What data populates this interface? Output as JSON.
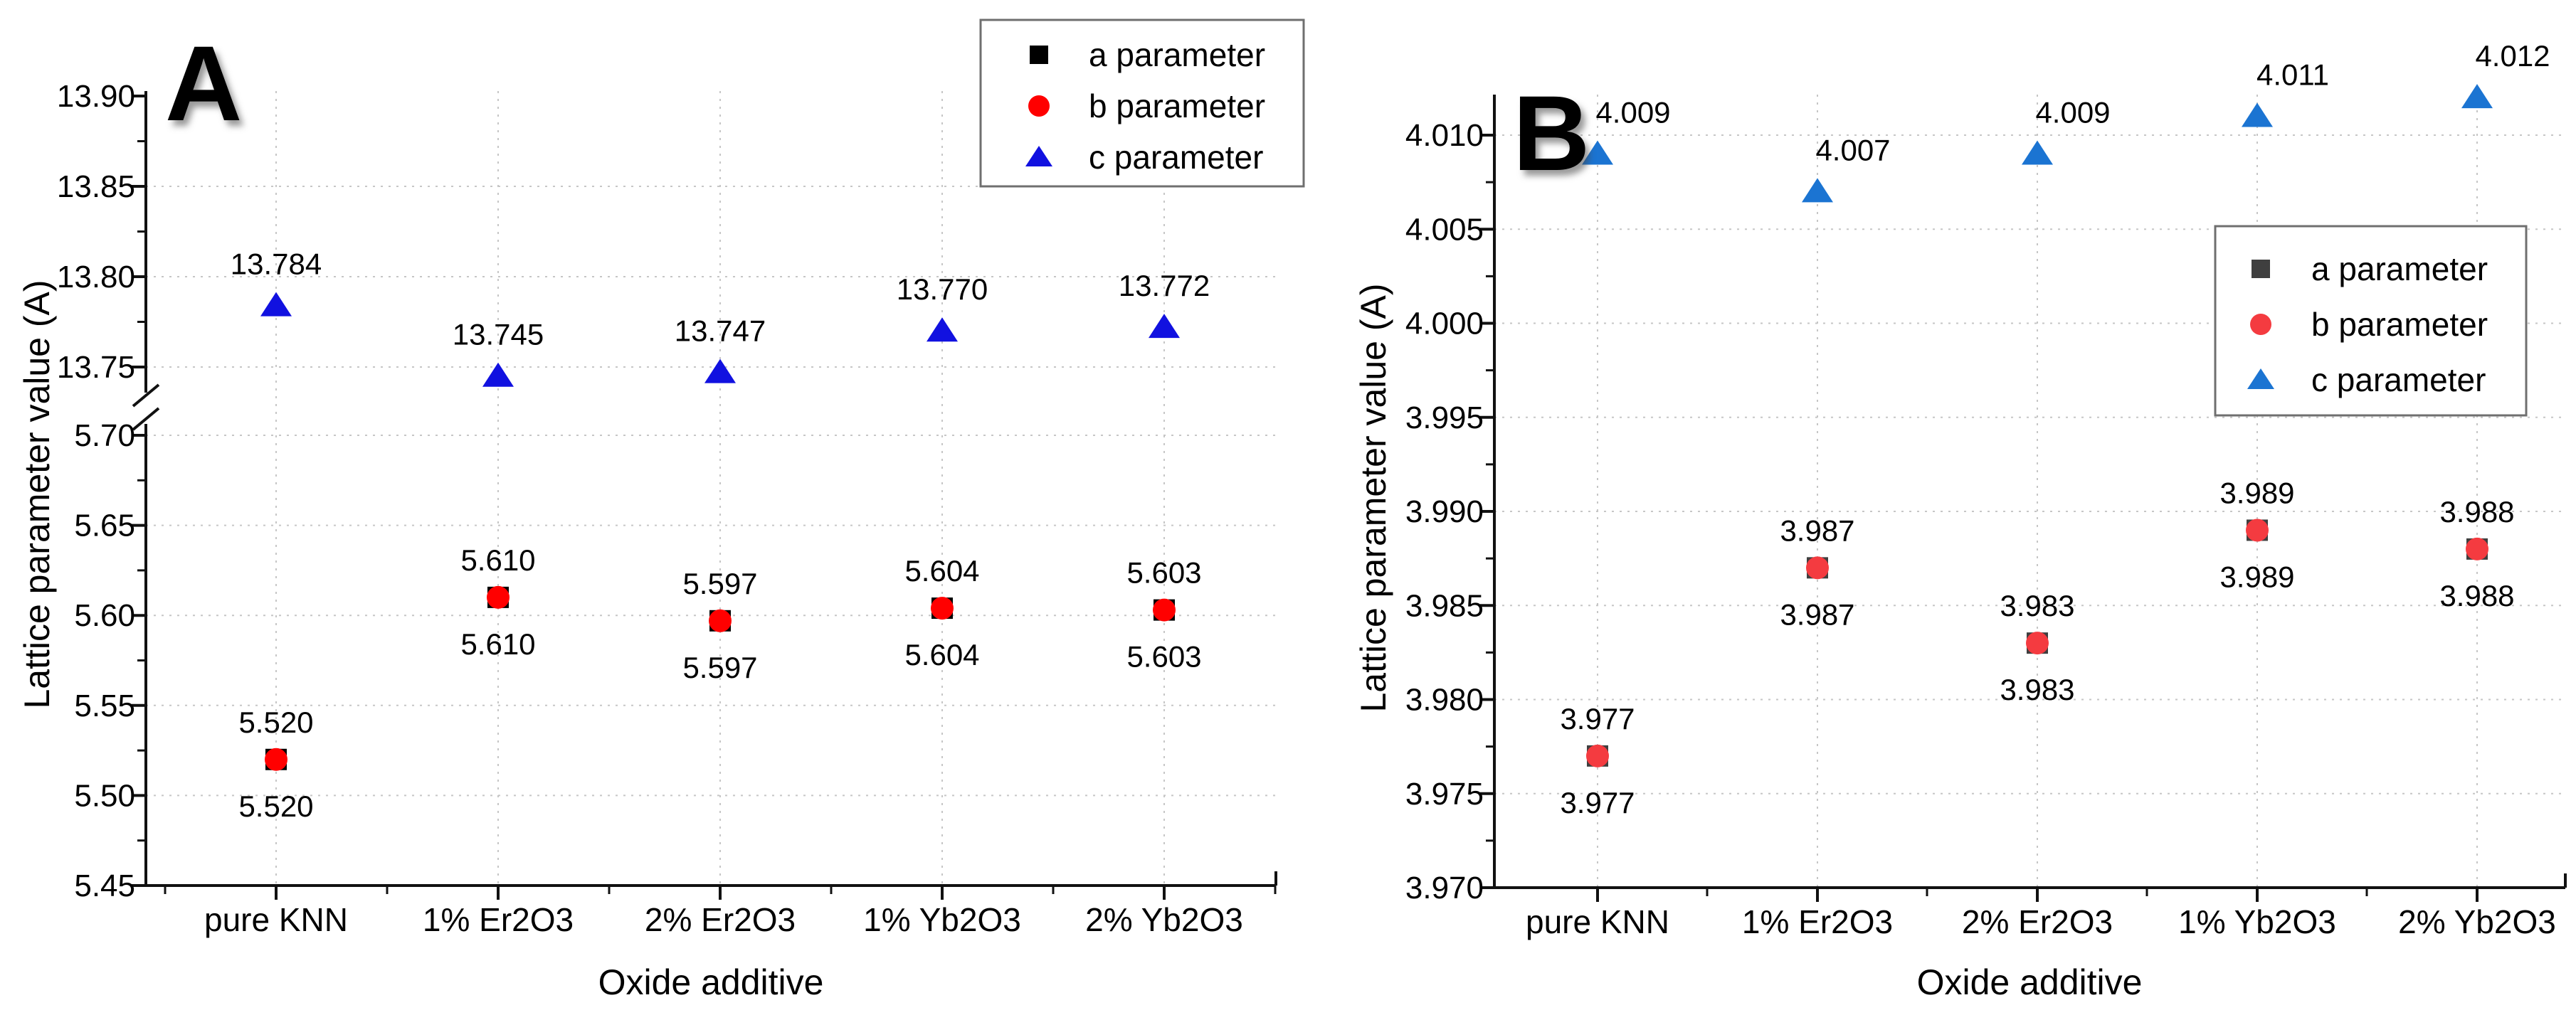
{
  "figure": {
    "background": "#ffffff"
  },
  "panels": [
    {
      "panel_label": "A",
      "axis": {
        "x_title": "Oxide additive",
        "y_title": "Lattice parameter value (A)"
      },
      "legend": {
        "position": "top-right",
        "items": [
          {
            "label": "a parameter",
            "marker": "square",
            "color": "#000000"
          },
          {
            "label": "b parameter",
            "marker": "circle",
            "color": "#ff0000"
          },
          {
            "label": "c parameter",
            "marker": "triangle",
            "color": "#1111e0"
          }
        ]
      },
      "chart_data": {
        "type": "scatter",
        "categories": [
          "pure KNN",
          "1% Er2O3",
          "2% Er2O3",
          "1% Yb2O3",
          "2% Yb2O3"
        ],
        "xlabel": "Oxide additive",
        "ylabel": "Lattice parameter value (A)",
        "grid": "dotted",
        "broken_y_axis": true,
        "y_axis_segments": [
          {
            "range": [
              13.74,
              13.905
            ],
            "ticks": [
              {
                "value": 13.9,
                "label": "13.90"
              },
              {
                "value": 13.85,
                "label": "13.85"
              },
              {
                "value": 13.8,
                "label": "13.80"
              },
              {
                "value": 13.75,
                "label": "13.75"
              }
            ],
            "minor_ticks": [
              13.875,
              13.825,
              13.775
            ],
            "gridlines": [
              13.85,
              13.8,
              13.75
            ]
          },
          {
            "range": [
              5.45,
              5.7
            ],
            "ticks": [
              {
                "value": 5.7,
                "label": "5.70"
              },
              {
                "value": 5.65,
                "label": "5.65"
              },
              {
                "value": 5.6,
                "label": "5.60"
              },
              {
                "value": 5.55,
                "label": "5.55"
              },
              {
                "value": 5.5,
                "label": "5.50"
              },
              {
                "value": 5.45,
                "label": "5.45"
              }
            ],
            "minor_ticks": [
              5.675,
              5.625,
              5.575,
              5.525,
              5.475
            ],
            "gridlines": [
              5.7,
              5.65,
              5.6,
              5.55,
              5.5
            ]
          }
        ],
        "series": [
          {
            "name": "a parameter",
            "marker": "square",
            "color": "#000000",
            "values": [
              5.52,
              5.61,
              5.597,
              5.604,
              5.603
            ],
            "value_labels": [
              "5.520",
              "5.610",
              "5.597",
              "5.604",
              "5.603"
            ],
            "label_position": "below"
          },
          {
            "name": "b parameter",
            "marker": "circle",
            "color": "#ff0000",
            "values": [
              5.52,
              5.61,
              5.597,
              5.604,
              5.603
            ],
            "value_labels": [
              "5.520",
              "5.610",
              "5.597",
              "5.604",
              "5.603"
            ],
            "label_position": "above"
          },
          {
            "name": "c parameter",
            "marker": "triangle",
            "color": "#1111e0",
            "values": [
              13.784,
              13.745,
              13.747,
              13.77,
              13.772
            ],
            "value_labels": [
              "13.784",
              "13.745",
              "13.747",
              "13.770",
              "13.772"
            ],
            "label_position": "above"
          }
        ]
      }
    },
    {
      "panel_label": "B",
      "axis": {
        "x_title": "Oxide additive",
        "y_title": "Lattice parameter value (A)"
      },
      "legend": {
        "position": "right-upper",
        "items": [
          {
            "label": "a parameter",
            "marker": "square",
            "color": "#3f3f3f"
          },
          {
            "label": "b parameter",
            "marker": "circle",
            "color": "#f43b40"
          },
          {
            "label": "c parameter",
            "marker": "triangle",
            "color": "#1b74d2"
          }
        ]
      },
      "chart_data": {
        "type": "scatter",
        "categories": [
          "pure KNN",
          "1% Er2O3",
          "2% Er2O3",
          "1% Yb2O3",
          "2% Yb2O3"
        ],
        "xlabel": "Oxide additive",
        "ylabel": "Lattice parameter value (A)",
        "grid": "dotted",
        "broken_y_axis": false,
        "y_axis_segments": [
          {
            "range": [
              3.97,
              4.0125
            ],
            "ticks": [
              {
                "value": 4.01,
                "label": "4.010"
              },
              {
                "value": 4.005,
                "label": "4.005"
              },
              {
                "value": 4.0,
                "label": "4.000"
              },
              {
                "value": 3.995,
                "label": "3.995"
              },
              {
                "value": 3.99,
                "label": "3.990"
              },
              {
                "value": 3.985,
                "label": "3.985"
              },
              {
                "value": 3.98,
                "label": "3.980"
              },
              {
                "value": 3.975,
                "label": "3.975"
              },
              {
                "value": 3.97,
                "label": "3.970"
              }
            ],
            "minor_ticks": [
              4.0075,
              4.0025,
              3.9975,
              3.9925,
              3.9875,
              3.9825,
              3.9775,
              3.9725
            ],
            "gridlines": [
              4.01,
              4.005,
              4.0,
              3.995,
              3.99,
              3.985,
              3.98,
              3.975
            ]
          }
        ],
        "series": [
          {
            "name": "a parameter",
            "marker": "square",
            "color": "#3f3f3f",
            "values": [
              3.977,
              3.987,
              3.983,
              3.989,
              3.988
            ],
            "value_labels": [
              "3.977",
              "3.987",
              "3.983",
              "3.989",
              "3.988"
            ],
            "label_position": "below"
          },
          {
            "name": "b parameter",
            "marker": "circle",
            "color": "#f43b40",
            "values": [
              3.977,
              3.987,
              3.983,
              3.989,
              3.988
            ],
            "value_labels": [
              "3.977",
              "3.987",
              "3.983",
              "3.989",
              "3.988"
            ],
            "label_position": "above"
          },
          {
            "name": "c parameter",
            "marker": "triangle",
            "color": "#1b74d2",
            "values": [
              4.009,
              4.007,
              4.009,
              4.011,
              4.012
            ],
            "value_labels": [
              "4.009",
              "4.007",
              "4.009",
              "4.011",
              "4.012"
            ],
            "label_position": "above"
          }
        ]
      }
    }
  ]
}
